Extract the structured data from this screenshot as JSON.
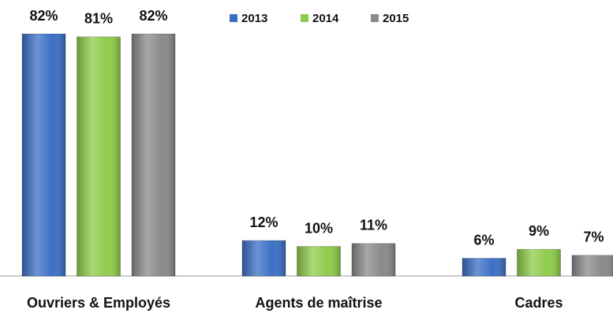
{
  "chart_data": {
    "type": "bar",
    "categories": [
      "Ouvriers & Employés",
      "Agents de maîtrise",
      "Cadres"
    ],
    "series": [
      {
        "name": "2013",
        "color": "#3b6fc6",
        "values": [
          82,
          12,
          6
        ],
        "value_labels": [
          "82%",
          "12%",
          "6%"
        ]
      },
      {
        "name": "2014",
        "color": "#8fcc4a",
        "values": [
          81,
          10,
          9
        ],
        "value_labels": [
          "81%",
          "10%",
          "9%"
        ]
      },
      {
        "name": "2015",
        "color": "#8a8a8a",
        "values": [
          82,
          11,
          7
        ],
        "value_labels": [
          "82%",
          "11%",
          "7%"
        ]
      }
    ],
    "legend": "top"
  }
}
